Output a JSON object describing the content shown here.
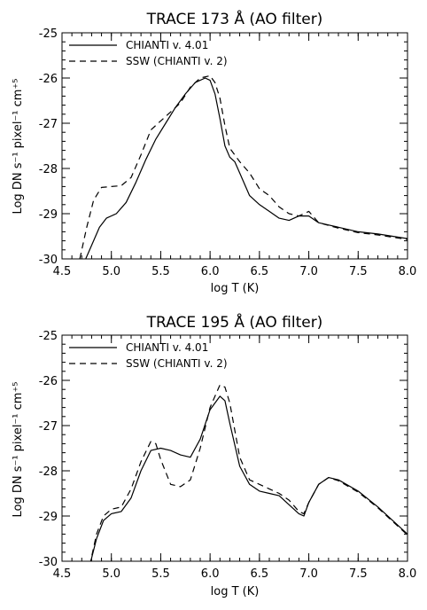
{
  "chart_data": [
    {
      "type": "line",
      "title": "TRACE 173 Å (AO filter)",
      "xlabel": "log T (K)",
      "ylabel": "Log DN s⁻¹ pixel⁻¹ cm⁺⁵",
      "xlim": [
        4.5,
        8.0
      ],
      "ylim": [
        -30,
        -25
      ],
      "xticks": [
        "4.5",
        "5.0",
        "5.5",
        "6.0",
        "6.5",
        "7.0",
        "7.5",
        "8.0"
      ],
      "yticks": [
        "-25",
        "-26",
        "-27",
        "-28",
        "-29",
        "-30"
      ],
      "legend_position": "top-left",
      "series": [
        {
          "name": "CHIANTI v. 4.01",
          "style": "solid",
          "x": [
            4.72,
            4.8,
            4.88,
            4.95,
            5.05,
            5.15,
            5.25,
            5.35,
            5.45,
            5.55,
            5.65,
            5.75,
            5.85,
            5.95,
            6.0,
            6.05,
            6.1,
            6.15,
            6.2,
            6.25,
            6.3,
            6.4,
            6.5,
            6.6,
            6.7,
            6.8,
            6.9,
            7.0,
            7.1,
            7.3,
            7.5,
            7.7,
            8.0
          ],
          "y": [
            -30.1,
            -29.7,
            -29.3,
            -29.1,
            -29.0,
            -28.75,
            -28.3,
            -27.8,
            -27.35,
            -27.0,
            -26.65,
            -26.35,
            -26.1,
            -26.0,
            -26.05,
            -26.35,
            -26.9,
            -27.5,
            -27.75,
            -27.85,
            -28.1,
            -28.6,
            -28.8,
            -28.95,
            -29.1,
            -29.15,
            -29.05,
            -29.05,
            -29.2,
            -29.3,
            -29.4,
            -29.45,
            -29.55
          ]
        },
        {
          "name": "SSW (CHIANTI v. 2)",
          "style": "dashed",
          "x": [
            4.68,
            4.75,
            4.82,
            4.9,
            5.0,
            5.1,
            5.2,
            5.3,
            5.4,
            5.5,
            5.6,
            5.7,
            5.8,
            5.9,
            6.0,
            6.05,
            6.1,
            6.15,
            6.2,
            6.3,
            6.4,
            6.5,
            6.6,
            6.7,
            6.8,
            6.9,
            7.0,
            7.1,
            7.3,
            7.5,
            7.7,
            8.0
          ],
          "y": [
            -30.0,
            -29.3,
            -28.7,
            -28.42,
            -28.4,
            -28.38,
            -28.2,
            -27.7,
            -27.15,
            -26.95,
            -26.75,
            -26.55,
            -26.2,
            -26.0,
            -25.95,
            -26.1,
            -26.45,
            -27.05,
            -27.55,
            -27.85,
            -28.1,
            -28.45,
            -28.6,
            -28.85,
            -29.0,
            -29.05,
            -28.95,
            -29.2,
            -29.32,
            -29.42,
            -29.47,
            -29.57
          ]
        }
      ]
    },
    {
      "type": "line",
      "title": "TRACE 195 Å (AO filter)",
      "xlabel": "log T (K)",
      "ylabel": "Log DN s⁻¹ pixel⁻¹ cm⁺⁵",
      "xlim": [
        4.5,
        8.0
      ],
      "ylim": [
        -30,
        -25
      ],
      "xticks": [
        "4.5",
        "5.0",
        "5.5",
        "6.0",
        "6.5",
        "7.0",
        "7.5",
        "8.0"
      ],
      "yticks": [
        "-25",
        "-26",
        "-27",
        "-28",
        "-29",
        "-30"
      ],
      "legend_position": "top-left",
      "series": [
        {
          "name": "CHIANTI v. 4.01",
          "style": "solid",
          "x": [
            4.78,
            4.85,
            4.92,
            5.0,
            5.1,
            5.2,
            5.3,
            5.4,
            5.5,
            5.6,
            5.7,
            5.8,
            5.9,
            6.0,
            6.1,
            6.15,
            6.2,
            6.3,
            6.4,
            6.5,
            6.6,
            6.7,
            6.8,
            6.9,
            6.95,
            7.0,
            7.1,
            7.2,
            7.3,
            7.5,
            7.7,
            8.0
          ],
          "y": [
            -30.1,
            -29.5,
            -29.1,
            -28.95,
            -28.9,
            -28.6,
            -28.0,
            -27.55,
            -27.5,
            -27.55,
            -27.65,
            -27.7,
            -27.3,
            -26.65,
            -26.35,
            -26.45,
            -26.95,
            -27.9,
            -28.3,
            -28.45,
            -28.5,
            -28.55,
            -28.75,
            -28.95,
            -29.0,
            -28.7,
            -28.3,
            -28.15,
            -28.2,
            -28.45,
            -28.8,
            -29.4
          ]
        },
        {
          "name": "SSW (CHIANTI v. 2)",
          "style": "dashed",
          "x": [
            4.78,
            4.85,
            4.92,
            5.0,
            5.1,
            5.2,
            5.3,
            5.4,
            5.45,
            5.5,
            5.6,
            5.7,
            5.8,
            5.9,
            6.0,
            6.1,
            6.15,
            6.2,
            6.3,
            6.4,
            6.5,
            6.6,
            6.7,
            6.8,
            6.9,
            6.95,
            7.0,
            7.1,
            7.2,
            7.3,
            7.5,
            7.7,
            8.0
          ],
          "y": [
            -30.1,
            -29.4,
            -29.0,
            -28.85,
            -28.8,
            -28.4,
            -27.8,
            -27.35,
            -27.4,
            -27.75,
            -28.3,
            -28.35,
            -28.2,
            -27.5,
            -26.6,
            -26.1,
            -26.15,
            -26.5,
            -27.7,
            -28.2,
            -28.3,
            -28.4,
            -28.5,
            -28.65,
            -28.9,
            -28.95,
            -28.7,
            -28.3,
            -28.15,
            -28.22,
            -28.47,
            -28.82,
            -29.42
          ]
        }
      ]
    }
  ]
}
